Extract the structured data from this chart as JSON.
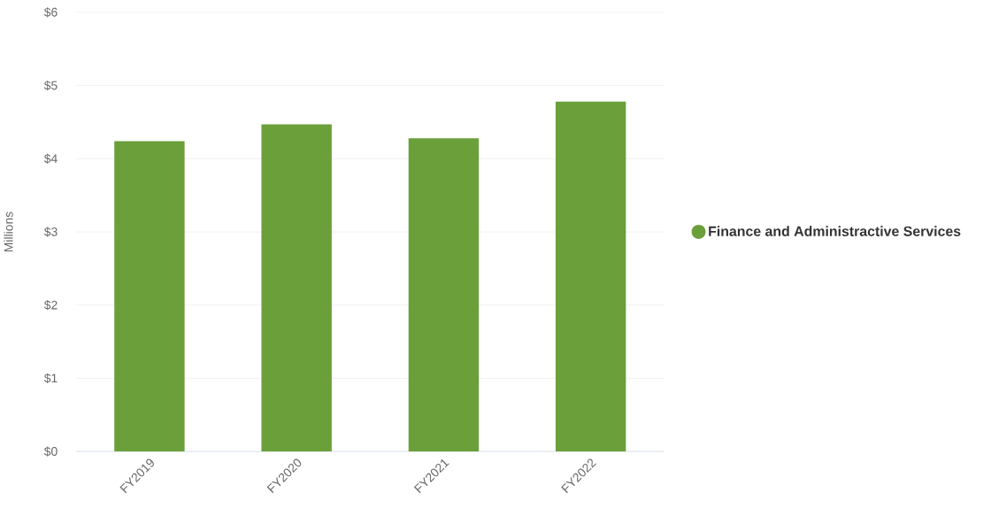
{
  "chart_data": {
    "type": "bar",
    "ylabel": "Millions",
    "categories": [
      "FY2019",
      "FY2020",
      "FY2021",
      "FY2022"
    ],
    "series": [
      {
        "name": "Finance and Administractive Services",
        "color": "#6a9f3a",
        "values": [
          4.24,
          4.47,
          4.28,
          4.78
        ]
      }
    ],
    "ylim": [
      0,
      6
    ],
    "yticks": [
      {
        "value": 0,
        "label": "$0"
      },
      {
        "value": 1,
        "label": "$1"
      },
      {
        "value": 2,
        "label": "$2"
      },
      {
        "value": 3,
        "label": "$3"
      },
      {
        "value": 4,
        "label": "$4"
      },
      {
        "value": 5,
        "label": "$5"
      },
      {
        "value": 6,
        "label": "$6"
      }
    ],
    "grid": "y",
    "legend": "right"
  }
}
